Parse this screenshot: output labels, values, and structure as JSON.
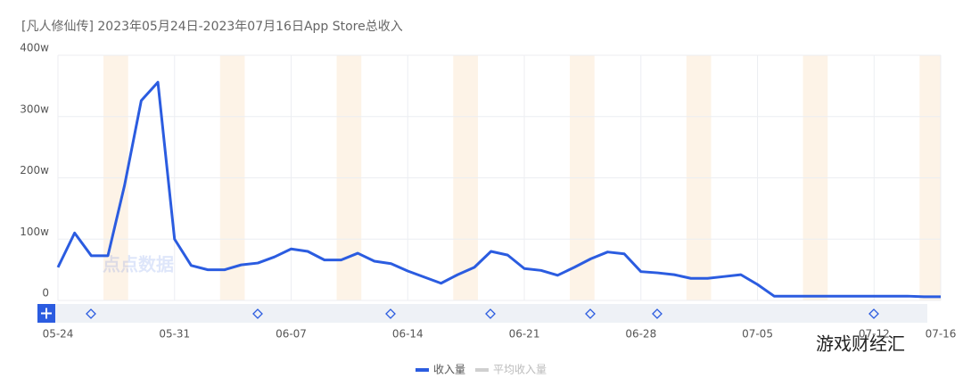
{
  "chart_data": {
    "type": "line",
    "title": "[凡人修仙传]  2023年05月24日-2023年07月16日App Store总收入",
    "categories": [
      "05-24",
      null,
      null,
      null,
      null,
      null,
      null,
      "05-31",
      null,
      null,
      null,
      null,
      null,
      null,
      "06-07",
      null,
      null,
      null,
      null,
      null,
      null,
      "06-14",
      null,
      null,
      null,
      null,
      null,
      null,
      "06-21",
      null,
      null,
      null,
      null,
      null,
      null,
      "06-28",
      null,
      null,
      null,
      null,
      null,
      null,
      "07-05",
      null,
      null,
      null,
      null,
      null,
      null,
      "07-12",
      null,
      null,
      null,
      "07-16"
    ],
    "series": [
      {
        "name": "收入量",
        "color": "#2b5ce0",
        "values": [
          54,
          110,
          73,
          73,
          188,
          326,
          356,
          100,
          57,
          50,
          50,
          58,
          61,
          71,
          84,
          80,
          66,
          66,
          77,
          64,
          60,
          48,
          38,
          28,
          42,
          54,
          80,
          74,
          52,
          49,
          41,
          54,
          68,
          79,
          76,
          47,
          45,
          42,
          36,
          36,
          39,
          42,
          26,
          7,
          7,
          7,
          7,
          7,
          7,
          7,
          7,
          7,
          6,
          6
        ]
      }
    ],
    "inactive_legend_entry": "平均收入量",
    "inactive_color": "#cfcfcf",
    "ylim": [
      0,
      400
    ],
    "yticks": [
      {
        "value": 0,
        "label": "0"
      },
      {
        "value": 100,
        "label": "100w"
      },
      {
        "value": 200,
        "label": "200w"
      },
      {
        "value": 300,
        "label": "300w"
      },
      {
        "value": 400,
        "label": "400w"
      }
    ],
    "grid": true,
    "watermarks": [
      "点点数据",
      "游戏财经汇"
    ]
  }
}
